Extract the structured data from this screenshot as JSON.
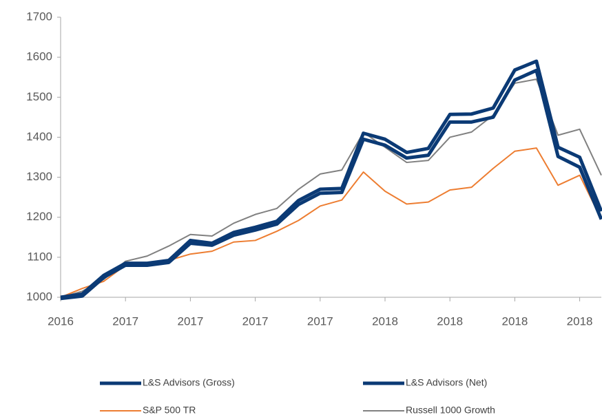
{
  "chart_data": {
    "type": "line",
    "categories": [
      "2016",
      null,
      null,
      "2017",
      null,
      null,
      "2017",
      null,
      null,
      "2017",
      null,
      null,
      "2017",
      null,
      null,
      "2018",
      null,
      null,
      "2018",
      null,
      null,
      "2018",
      null,
      null,
      "2018",
      null
    ],
    "series": [
      {
        "name": "L&S Advisors (Gross)",
        "color": "#0b3a75",
        "width": 5,
        "values": [
          1000,
          1008,
          1055,
          1085,
          1085,
          1092,
          1142,
          1135,
          1162,
          1175,
          1190,
          1242,
          1270,
          1272,
          1410,
          1395,
          1362,
          1372,
          1457,
          1458,
          1473,
          1568,
          1590,
          1375,
          1350,
          1215
        ]
      },
      {
        "name": "L&S Advisors (Net)",
        "color": "#0b3a75",
        "width": 5,
        "values": [
          997,
          1003,
          1050,
          1080,
          1080,
          1087,
          1135,
          1130,
          1155,
          1168,
          1183,
          1232,
          1260,
          1262,
          1395,
          1380,
          1348,
          1355,
          1438,
          1438,
          1450,
          1543,
          1567,
          1352,
          1325,
          1195
        ]
      },
      {
        "name": "S&P 500 TR",
        "color": "#ed7d31",
        "width": 2,
        "values": [
          1000,
          1022,
          1040,
          1080,
          1082,
          1092,
          1108,
          1115,
          1138,
          1142,
          1165,
          1192,
          1228,
          1243,
          1313,
          1265,
          1233,
          1238,
          1268,
          1275,
          1322,
          1365,
          1373,
          1280,
          1305,
          1195
        ]
      },
      {
        "name": "Russell 1000 Growth",
        "color": "#808080",
        "width": 2,
        "values": [
          1000,
          1015,
          1045,
          1090,
          1103,
          1128,
          1157,
          1153,
          1185,
          1207,
          1222,
          1270,
          1308,
          1318,
          1412,
          1375,
          1337,
          1342,
          1400,
          1413,
          1455,
          1535,
          1545,
          1405,
          1420,
          1305
        ]
      }
    ],
    "ylim": [
      1000,
      1700
    ],
    "yticks": [
      1000,
      1100,
      1200,
      1300,
      1400,
      1500,
      1600,
      1700
    ],
    "grid": false,
    "legend": "bottom"
  }
}
